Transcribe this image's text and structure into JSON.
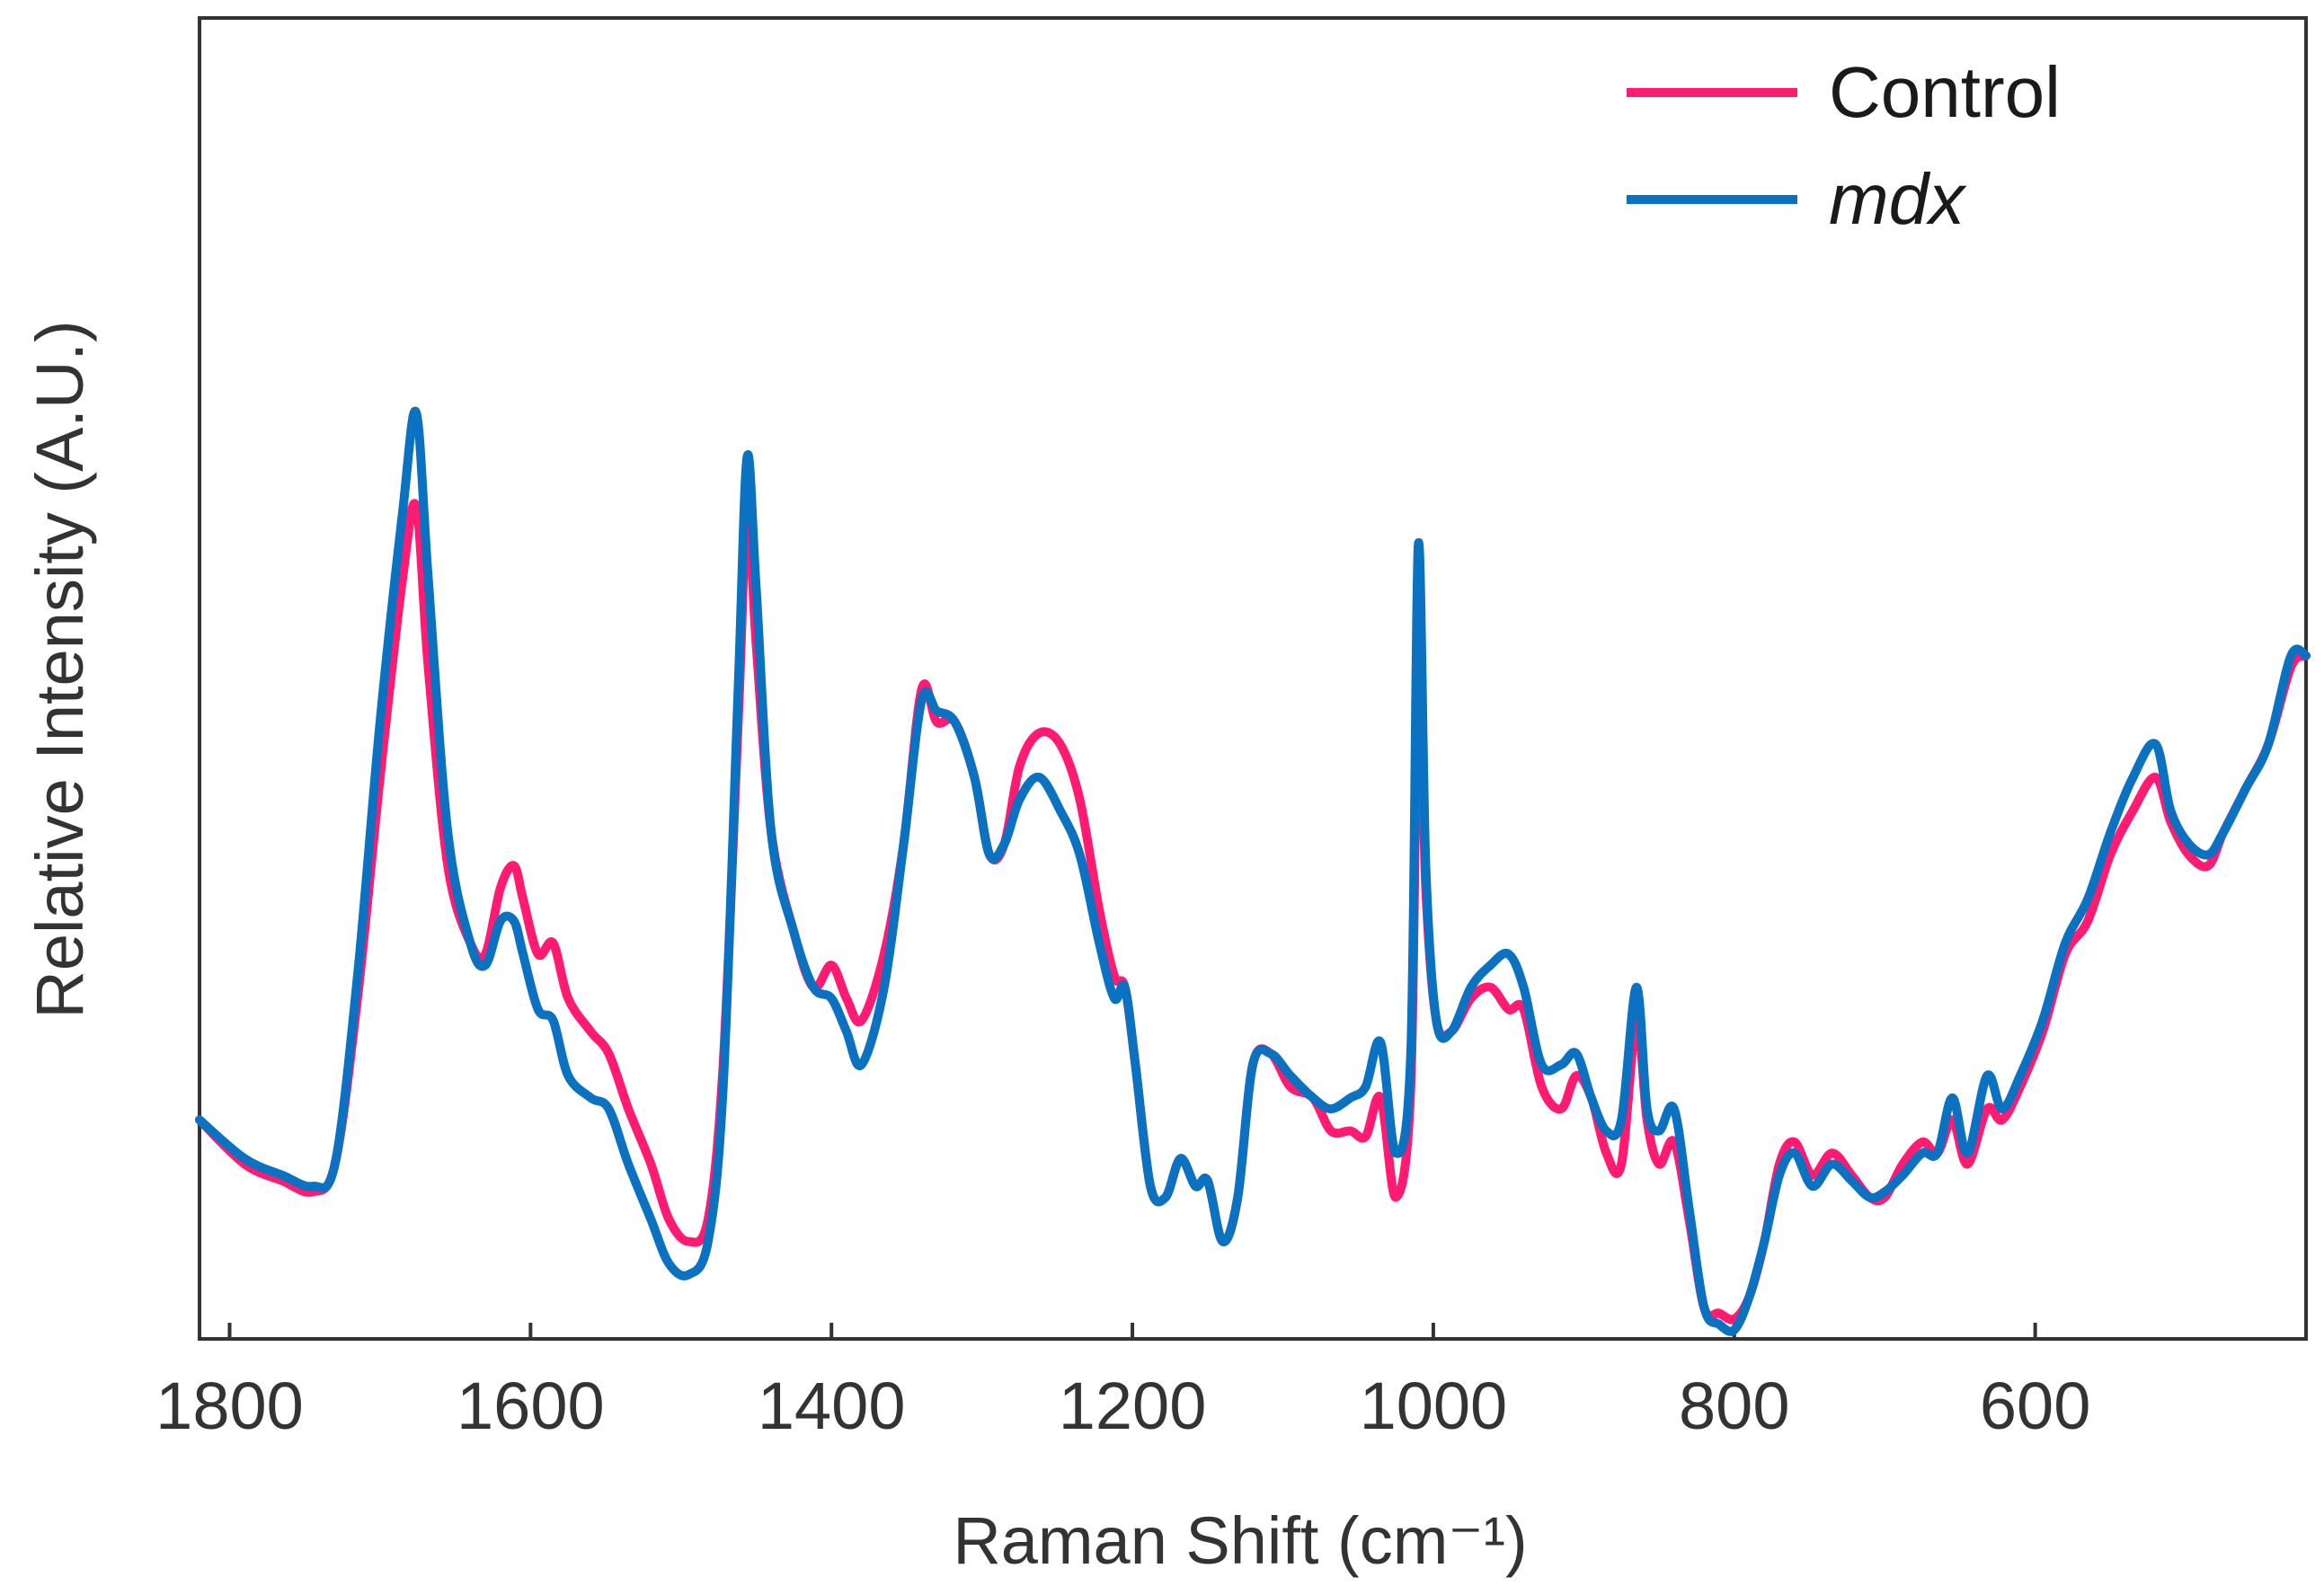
{
  "chart_data": {
    "type": "line",
    "title": "",
    "xlabel": "Raman Shift (cm⁻¹)",
    "ylabel": "Relative Intensity (A.U.)",
    "x_reversed": true,
    "xlim": [
      1820,
      420
    ],
    "ylim": [
      0.0,
      1.0
    ],
    "xticks": [
      1800,
      1600,
      1400,
      1200,
      1000,
      800,
      600
    ],
    "xtick_labels": [
      "1800",
      "1600",
      "1400",
      "1200",
      "1000",
      "800",
      "600"
    ],
    "yticks_shown": false,
    "grid": false,
    "legend_position": "top-right",
    "series": [
      {
        "name": "Control",
        "italic": false,
        "color": "#ff1a72",
        "points": [
          [
            1820,
            0.19
          ],
          [
            1790,
            0.15
          ],
          [
            1765,
            0.135
          ],
          [
            1745,
            0.125
          ],
          [
            1730,
            0.15
          ],
          [
            1715,
            0.3
          ],
          [
            1700,
            0.5
          ],
          [
            1685,
            0.68
          ],
          [
            1676,
            0.745
          ],
          [
            1668,
            0.6
          ],
          [
            1655,
            0.42
          ],
          [
            1640,
            0.35
          ],
          [
            1630,
            0.34
          ],
          [
            1620,
            0.4
          ],
          [
            1611,
            0.42
          ],
          [
            1605,
            0.39
          ],
          [
            1595,
            0.34
          ],
          [
            1585,
            0.35
          ],
          [
            1575,
            0.3
          ],
          [
            1560,
            0.27
          ],
          [
            1548,
            0.25
          ],
          [
            1535,
            0.2
          ],
          [
            1520,
            0.15
          ],
          [
            1508,
            0.1
          ],
          [
            1495,
            0.08
          ],
          [
            1482,
            0.1
          ],
          [
            1472,
            0.24
          ],
          [
            1462,
            0.55
          ],
          [
            1456,
            0.74
          ],
          [
            1450,
            0.62
          ],
          [
            1440,
            0.45
          ],
          [
            1425,
            0.36
          ],
          [
            1412,
            0.31
          ],
          [
            1400,
            0.33
          ],
          [
            1390,
            0.3
          ],
          [
            1380,
            0.28
          ],
          [
            1365,
            0.34
          ],
          [
            1352,
            0.44
          ],
          [
            1340,
            0.58
          ],
          [
            1330,
            0.55
          ],
          [
            1318,
            0.55
          ],
          [
            1305,
            0.5
          ],
          [
            1295,
            0.43
          ],
          [
            1285,
            0.44
          ],
          [
            1275,
            0.51
          ],
          [
            1262,
            0.54
          ],
          [
            1248,
            0.53
          ],
          [
            1235,
            0.48
          ],
          [
            1222,
            0.38
          ],
          [
            1212,
            0.32
          ],
          [
            1205,
            0.31
          ],
          [
            1198,
            0.24
          ],
          [
            1188,
            0.13
          ],
          [
            1178,
            0.12
          ],
          [
            1168,
            0.155
          ],
          [
            1158,
            0.13
          ],
          [
            1150,
            0.135
          ],
          [
            1140,
            0.08
          ],
          [
            1130,
            0.12
          ],
          [
            1120,
            0.24
          ],
          [
            1108,
            0.25
          ],
          [
            1095,
            0.22
          ],
          [
            1080,
            0.21
          ],
          [
            1068,
            0.18
          ],
          [
            1055,
            0.18
          ],
          [
            1045,
            0.175
          ],
          [
            1035,
            0.21
          ],
          [
            1025,
            0.12
          ],
          [
            1015,
            0.22
          ],
          [
            1010,
            0.62
          ],
          [
            1005,
            0.4
          ],
          [
            998,
            0.28
          ],
          [
            988,
            0.27
          ],
          [
            975,
            0.3
          ],
          [
            962,
            0.31
          ],
          [
            950,
            0.29
          ],
          [
            940,
            0.29
          ],
          [
            928,
            0.22
          ],
          [
            915,
            0.2
          ],
          [
            905,
            0.23
          ],
          [
            895,
            0.21
          ],
          [
            885,
            0.16
          ],
          [
            875,
            0.15
          ],
          [
            865,
            0.28
          ],
          [
            858,
            0.19
          ],
          [
            850,
            0.15
          ],
          [
            840,
            0.17
          ],
          [
            830,
            0.1
          ],
          [
            820,
            0.02
          ],
          [
            810,
            0.015
          ],
          [
            800,
            0.01
          ],
          [
            790,
            0.03
          ],
          [
            780,
            0.08
          ],
          [
            770,
            0.15
          ],
          [
            760,
            0.17
          ],
          [
            748,
            0.14
          ],
          [
            735,
            0.16
          ],
          [
            722,
            0.14
          ],
          [
            710,
            0.12
          ],
          [
            700,
            0.12
          ],
          [
            688,
            0.15
          ],
          [
            675,
            0.17
          ],
          [
            665,
            0.16
          ],
          [
            655,
            0.19
          ],
          [
            645,
            0.15
          ],
          [
            632,
            0.2
          ],
          [
            622,
            0.19
          ],
          [
            610,
            0.22
          ],
          [
            595,
            0.27
          ],
          [
            580,
            0.34
          ],
          [
            565,
            0.37
          ],
          [
            550,
            0.43
          ],
          [
            535,
            0.47
          ],
          [
            520,
            0.5
          ],
          [
            510,
            0.46
          ],
          [
            498,
            0.43
          ],
          [
            485,
            0.42
          ],
          [
            475,
            0.45
          ],
          [
            460,
            0.49
          ],
          [
            445,
            0.53
          ],
          [
            430,
            0.6
          ],
          [
            420,
            0.61
          ]
        ]
      },
      {
        "name": "mdx",
        "italic": true,
        "color": "#0a72c0",
        "points": [
          [
            1820,
            0.19
          ],
          [
            1790,
            0.155
          ],
          [
            1765,
            0.14
          ],
          [
            1745,
            0.13
          ],
          [
            1730,
            0.15
          ],
          [
            1715,
            0.32
          ],
          [
            1700,
            0.55
          ],
          [
            1685,
            0.74
          ],
          [
            1676,
            0.83
          ],
          [
            1668,
            0.68
          ],
          [
            1655,
            0.45
          ],
          [
            1640,
            0.35
          ],
          [
            1630,
            0.33
          ],
          [
            1620,
            0.37
          ],
          [
            1611,
            0.37
          ],
          [
            1605,
            0.34
          ],
          [
            1595,
            0.29
          ],
          [
            1585,
            0.28
          ],
          [
            1575,
            0.23
          ],
          [
            1560,
            0.21
          ],
          [
            1548,
            0.2
          ],
          [
            1535,
            0.15
          ],
          [
            1520,
            0.1
          ],
          [
            1508,
            0.06
          ],
          [
            1495,
            0.05
          ],
          [
            1482,
            0.08
          ],
          [
            1472,
            0.22
          ],
          [
            1462,
            0.58
          ],
          [
            1456,
            0.79
          ],
          [
            1450,
            0.67
          ],
          [
            1440,
            0.45
          ],
          [
            1425,
            0.36
          ],
          [
            1412,
            0.31
          ],
          [
            1400,
            0.3
          ],
          [
            1390,
            0.27
          ],
          [
            1380,
            0.24
          ],
          [
            1365,
            0.31
          ],
          [
            1352,
            0.44
          ],
          [
            1340,
            0.57
          ],
          [
            1330,
            0.56
          ],
          [
            1318,
            0.55
          ],
          [
            1305,
            0.5
          ],
          [
            1295,
            0.43
          ],
          [
            1285,
            0.44
          ],
          [
            1275,
            0.48
          ],
          [
            1262,
            0.5
          ],
          [
            1248,
            0.47
          ],
          [
            1235,
            0.43
          ],
          [
            1222,
            0.35
          ],
          [
            1212,
            0.3
          ],
          [
            1205,
            0.31
          ],
          [
            1198,
            0.24
          ],
          [
            1188,
            0.13
          ],
          [
            1178,
            0.12
          ],
          [
            1168,
            0.155
          ],
          [
            1158,
            0.13
          ],
          [
            1150,
            0.135
          ],
          [
            1140,
            0.08
          ],
          [
            1130,
            0.12
          ],
          [
            1120,
            0.24
          ],
          [
            1108,
            0.25
          ],
          [
            1095,
            0.23
          ],
          [
            1080,
            0.21
          ],
          [
            1068,
            0.2
          ],
          [
            1055,
            0.21
          ],
          [
            1045,
            0.22
          ],
          [
            1035,
            0.26
          ],
          [
            1025,
            0.16
          ],
          [
            1015,
            0.25
          ],
          [
            1010,
            0.71
          ],
          [
            1005,
            0.42
          ],
          [
            998,
            0.28
          ],
          [
            988,
            0.27
          ],
          [
            975,
            0.31
          ],
          [
            962,
            0.33
          ],
          [
            950,
            0.34
          ],
          [
            940,
            0.31
          ],
          [
            928,
            0.24
          ],
          [
            915,
            0.24
          ],
          [
            905,
            0.25
          ],
          [
            895,
            0.21
          ],
          [
            885,
            0.18
          ],
          [
            875,
            0.19
          ],
          [
            865,
            0.31
          ],
          [
            858,
            0.2
          ],
          [
            850,
            0.18
          ],
          [
            840,
            0.2
          ],
          [
            830,
            0.11
          ],
          [
            820,
            0.02
          ],
          [
            810,
            0.005
          ],
          [
            800,
            0.0
          ],
          [
            790,
            0.03
          ],
          [
            780,
            0.08
          ],
          [
            770,
            0.14
          ],
          [
            760,
            0.16
          ],
          [
            748,
            0.13
          ],
          [
            735,
            0.15
          ],
          [
            722,
            0.135
          ],
          [
            710,
            0.12
          ],
          [
            700,
            0.125
          ],
          [
            688,
            0.14
          ],
          [
            675,
            0.16
          ],
          [
            665,
            0.16
          ],
          [
            655,
            0.21
          ],
          [
            645,
            0.16
          ],
          [
            632,
            0.23
          ],
          [
            622,
            0.2
          ],
          [
            610,
            0.23
          ],
          [
            595,
            0.28
          ],
          [
            580,
            0.35
          ],
          [
            565,
            0.39
          ],
          [
            550,
            0.45
          ],
          [
            535,
            0.5
          ],
          [
            520,
            0.53
          ],
          [
            510,
            0.47
          ],
          [
            498,
            0.44
          ],
          [
            485,
            0.43
          ],
          [
            475,
            0.45
          ],
          [
            460,
            0.49
          ],
          [
            445,
            0.53
          ],
          [
            430,
            0.61
          ],
          [
            420,
            0.61
          ]
        ]
      }
    ]
  }
}
